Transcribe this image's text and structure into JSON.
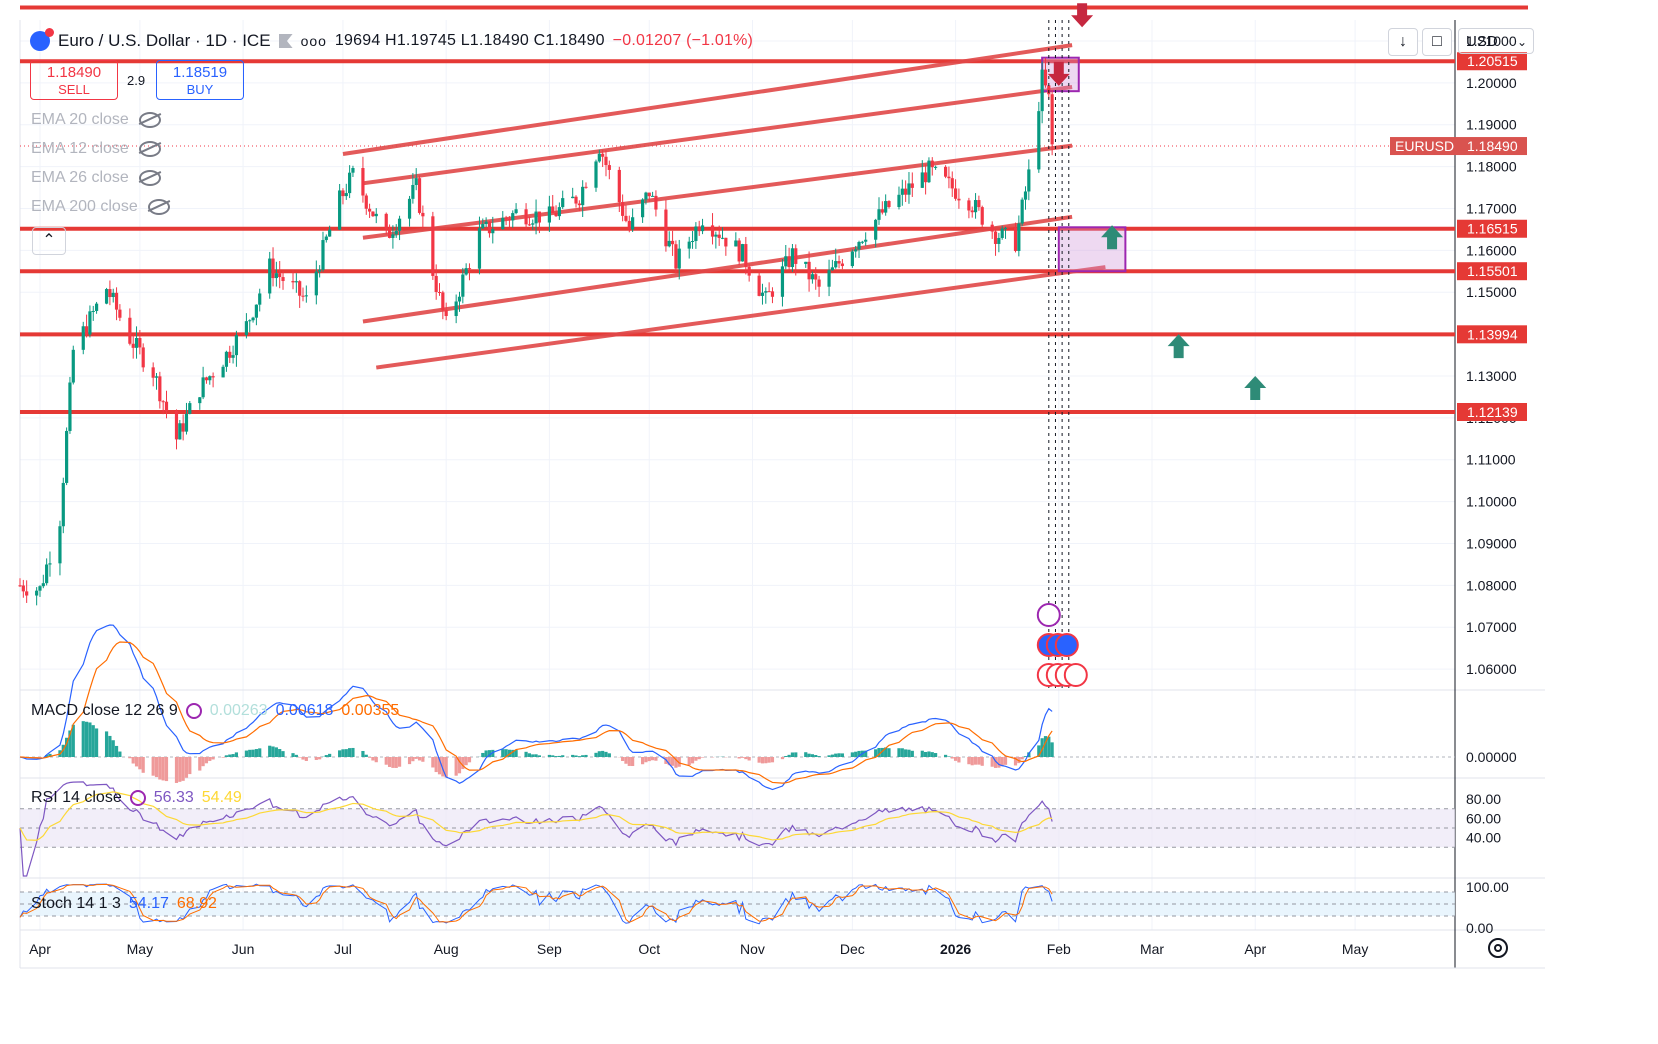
{
  "header": {
    "symbol": "Euro / U.S. Dollar · 1D · ICE",
    "ohlc": "19694 H1.19745 L1.18490 C1.18490",
    "change": "−0.01207 (−1.01%)",
    "more_label": "ooo"
  },
  "trade": {
    "sell_price": "1.18490",
    "sell_label": "SELL",
    "spread": "2.9",
    "buy_price": "1.18519",
    "buy_label": "BUY"
  },
  "indicators": [
    "EMA 20 close",
    "EMA 12 close",
    "EMA 26 close",
    "EMA 200 close"
  ],
  "toolbar": {
    "download_icon": "download-icon",
    "fullscreen_icon": "fullscreen-icon",
    "currency": "USD"
  },
  "macd": {
    "label": "MACD close 12 26 9",
    "hist": "0.00263",
    "macd": "0.00618",
    "signal": "0.00355"
  },
  "rsi": {
    "label": "RSI 14 close",
    "value": "56.33",
    "ma": "54.49"
  },
  "stoch": {
    "label": "Stoch 14 1 3",
    "k": "54.17",
    "d": "68.92"
  },
  "colors": {
    "down": "#f23645",
    "up": "#089981",
    "blue": "#2962ff",
    "orange": "#ff6d00",
    "purple": "#7e57c2",
    "level": "#e53935"
  },
  "chart_data": {
    "type": "candlestick",
    "title": "Euro / U.S. Dollar · 1D · ICE",
    "symbol_label": "EURUSD",
    "last_price": 1.1849,
    "ylim": [
      1.055,
      1.215
    ],
    "y_ticks": [
      "1.21000",
      "1.20000",
      "1.19000",
      "1.18000",
      "1.17000",
      "1.16000",
      "1.15000",
      "1.14000",
      "1.13000",
      "1.12000",
      "1.11000",
      "1.10000",
      "1.09000",
      "1.08000",
      "1.07000",
      "1.06000"
    ],
    "x_labels": [
      "Apr",
      "May",
      "Jun",
      "Jul",
      "Aug",
      "Sep",
      "Oct",
      "Nov",
      "Dec",
      "2026",
      "Feb",
      "Mar",
      "Apr",
      "May"
    ],
    "x_range": [
      "2025-03-26",
      "2026-05-31"
    ],
    "close_path": [
      [
        "2025-03-26",
        1.08
      ],
      [
        "2025-04-01",
        1.079
      ],
      [
        "2025-04-07",
        1.096
      ],
      [
        "2025-04-11",
        1.136
      ],
      [
        "2025-04-21",
        1.151
      ],
      [
        "2025-04-28",
        1.139
      ],
      [
        "2025-05-05",
        1.131
      ],
      [
        "2025-05-12",
        1.115
      ],
      [
        "2025-05-19",
        1.127
      ],
      [
        "2025-05-26",
        1.134
      ],
      [
        "2025-06-02",
        1.142
      ],
      [
        "2025-06-09",
        1.156
      ],
      [
        "2025-06-20",
        1.148
      ],
      [
        "2025-06-30",
        1.172
      ],
      [
        "2025-07-04",
        1.178
      ],
      [
        "2025-07-14",
        1.163
      ],
      [
        "2025-07-23",
        1.175
      ],
      [
        "2025-07-28",
        1.155
      ],
      [
        "2025-08-01",
        1.142
      ],
      [
        "2025-08-11",
        1.164
      ],
      [
        "2025-08-22",
        1.169
      ],
      [
        "2025-09-01",
        1.168
      ],
      [
        "2025-09-10",
        1.173
      ],
      [
        "2025-09-16",
        1.185
      ],
      [
        "2025-09-25",
        1.165
      ],
      [
        "2025-10-01",
        1.174
      ],
      [
        "2025-10-09",
        1.157
      ],
      [
        "2025-10-17",
        1.168
      ],
      [
        "2025-10-29",
        1.159
      ],
      [
        "2025-11-05",
        1.148
      ],
      [
        "2025-11-13",
        1.159
      ],
      [
        "2025-11-21",
        1.151
      ],
      [
        "2025-12-01",
        1.161
      ],
      [
        "2025-12-10",
        1.169
      ],
      [
        "2025-12-24",
        1.179
      ],
      [
        "2026-01-05",
        1.172
      ],
      [
        "2026-01-13",
        1.164
      ],
      [
        "2026-01-19",
        1.162
      ],
      [
        "2026-01-23",
        1.178
      ],
      [
        "2026-01-27",
        1.201
      ],
      [
        "2026-01-29",
        1.196
      ],
      [
        "2026-01-30",
        1.1849
      ]
    ],
    "horizontal_levels": [
      "1.20515",
      "1.16515",
      "1.15501",
      "1.13994",
      "1.12139"
    ],
    "top_level": 1.218,
    "channel_lines": [
      [
        [
          "2025-07-01",
          1.183
        ],
        [
          "2026-02-05",
          1.209
        ]
      ],
      [
        [
          "2025-07-07",
          1.176
        ],
        [
          "2026-02-05",
          1.199
        ]
      ],
      [
        [
          "2025-07-07",
          1.163
        ],
        [
          "2026-02-05",
          1.185
        ]
      ],
      [
        [
          "2025-07-07",
          1.143
        ],
        [
          "2026-02-05",
          1.168
        ]
      ],
      [
        [
          "2025-07-11",
          1.132
        ],
        [
          "2026-02-15",
          1.156
        ]
      ]
    ],
    "zones": [
      {
        "from": "2026-01-27",
        "to": "2026-02-07",
        "high": 1.206,
        "low": 1.198
      },
      {
        "from": "2026-02-01",
        "to": "2026-02-21",
        "high": 1.1655,
        "low": 1.155
      }
    ],
    "arrows": [
      {
        "direction": "down",
        "date": "2026-02-08",
        "price": 1.219
      },
      {
        "direction": "down",
        "date": "2026-02-01",
        "price": 1.205
      },
      {
        "direction": "up",
        "date": "2026-02-17",
        "price": 1.166
      },
      {
        "direction": "up",
        "date": "2026-03-09",
        "price": 1.14
      },
      {
        "direction": "up",
        "date": "2026-04-01",
        "price": 1.13
      }
    ],
    "rsi_range": [
      0,
      100
    ],
    "rsi_ticks": [
      "80.00",
      "60.00",
      "40.00"
    ],
    "rsi_bands": [
      70,
      30
    ],
    "stoch_ticks": [
      "100.00",
      "0.00"
    ],
    "macd_ticks": [
      "0.00000"
    ]
  }
}
